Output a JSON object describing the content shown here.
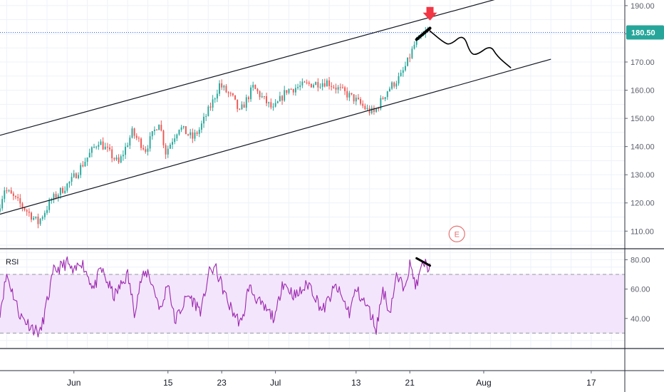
{
  "colors": {
    "up": "#26a69a",
    "down": "#ef5350",
    "channel": "#131722",
    "rsi_line": "#9c27b0",
    "rsi_band": "#f3e5fb",
    "rsi_band_border": "#9598a1",
    "price_line": "#2962ff",
    "price_label_bg": "#26a69a",
    "earnings": "#e57373",
    "arrow": "#f23645",
    "grid": "#eef1f8",
    "projection": "#000000"
  },
  "chart_data": [
    {
      "type": "candlestick",
      "title": "",
      "symbol": "",
      "y_axis": {
        "min": 104,
        "max": 192,
        "ticks": [
          110,
          120,
          130,
          140,
          150,
          160,
          170,
          180,
          190
        ],
        "tick_labels": [
          "110.00",
          "120.00",
          "130.00",
          "140.00",
          "150.00",
          "160.00",
          "170.00",
          "180.00",
          "190.00"
        ]
      },
      "x_axis": {
        "start": "2020-05-21",
        "end": "2020-08-22",
        "ticks": [
          {
            "date": "2020-06-01",
            "label": "Jun"
          },
          {
            "date": "2020-06-15",
            "label": "15"
          },
          {
            "date": "2020-06-23",
            "label": "23"
          },
          {
            "date": "2020-07-01",
            "label": "Jul"
          },
          {
            "date": "2020-07-13",
            "label": "13"
          },
          {
            "date": "2020-07-21",
            "label": "21"
          },
          {
            "date": "2020-08-01",
            "label": "Aug"
          },
          {
            "date": "2020-08-17",
            "label": "17"
          }
        ]
      },
      "last_price": 180.5,
      "last_price_label": "180.50",
      "earnings_marker": {
        "date": "2020-07-28",
        "price": 110,
        "label": "E"
      },
      "keypoints": [
        [
          "2020-05-21",
          117
        ],
        [
          "2020-05-22",
          125
        ],
        [
          "2020-05-25",
          118
        ],
        [
          "2020-05-27",
          113
        ],
        [
          "2020-05-29",
          121
        ],
        [
          "2020-06-01",
          128
        ],
        [
          "2020-06-03",
          135
        ],
        [
          "2020-06-05",
          142
        ],
        [
          "2020-06-08",
          134
        ],
        [
          "2020-06-10",
          145
        ],
        [
          "2020-06-12",
          139
        ],
        [
          "2020-06-14",
          149
        ],
        [
          "2020-06-15",
          138
        ],
        [
          "2020-06-17",
          147
        ],
        [
          "2020-06-19",
          143
        ],
        [
          "2020-06-20",
          146
        ],
        [
          "2020-06-22",
          156
        ],
        [
          "2020-06-23",
          162
        ],
        [
          "2020-06-25",
          157
        ],
        [
          "2020-06-26",
          152
        ],
        [
          "2020-06-28",
          161
        ],
        [
          "2020-07-01",
          153
        ],
        [
          "2020-07-03",
          160
        ],
        [
          "2020-07-06",
          162
        ],
        [
          "2020-07-09",
          163
        ],
        [
          "2020-07-11",
          160
        ],
        [
          "2020-07-13",
          157
        ],
        [
          "2020-07-15",
          153
        ],
        [
          "2020-07-16",
          152
        ],
        [
          "2020-07-18",
          160
        ],
        [
          "2020-07-20",
          165
        ],
        [
          "2020-07-21",
          170
        ],
        [
          "2020-07-22",
          176
        ],
        [
          "2020-07-24",
          181
        ]
      ],
      "channel": {
        "upper": [
          [
            "2020-05-21",
            144
          ],
          [
            "2020-08-07",
            195
          ]
        ],
        "lower": [
          [
            "2020-05-21",
            116
          ],
          [
            "2020-08-11",
            171
          ]
        ]
      },
      "divergence_line": [
        [
          "2020-07-22",
          178
        ],
        [
          "2020-07-24",
          182
        ]
      ],
      "top_arrow": {
        "date": "2020-07-24",
        "price": 187
      },
      "projection_path": [
        [
          "2020-07-24",
          181
        ],
        [
          "2020-07-26",
          177
        ],
        [
          "2020-07-27",
          176
        ],
        [
          "2020-07-29",
          180
        ],
        [
          "2020-07-30",
          173
        ],
        [
          "2020-07-31",
          172.5
        ],
        [
          "2020-08-02",
          176
        ],
        [
          "2020-08-03",
          172
        ],
        [
          "2020-08-05",
          168
        ]
      ]
    },
    {
      "type": "line",
      "title": "RSI",
      "y_axis": {
        "min": 20,
        "max": 87,
        "ticks": [
          40,
          60,
          80
        ],
        "tick_labels": [
          "40.00",
          "60.00",
          "80.00"
        ]
      },
      "band": [
        30,
        70
      ],
      "keypoints": [
        [
          "2020-05-21",
          45
        ],
        [
          "2020-05-22",
          70
        ],
        [
          "2020-05-24",
          42
        ],
        [
          "2020-05-26",
          33
        ],
        [
          "2020-05-27",
          30
        ],
        [
          "2020-05-29",
          72
        ],
        [
          "2020-05-31",
          78
        ],
        [
          "2020-06-01",
          70
        ],
        [
          "2020-06-02",
          80
        ],
        [
          "2020-06-04",
          60
        ],
        [
          "2020-06-05",
          74
        ],
        [
          "2020-06-07",
          55
        ],
        [
          "2020-06-09",
          70
        ],
        [
          "2020-06-10",
          45
        ],
        [
          "2020-06-11",
          66
        ],
        [
          "2020-06-12",
          72
        ],
        [
          "2020-06-14",
          45
        ],
        [
          "2020-06-15",
          66
        ],
        [
          "2020-06-16",
          38
        ],
        [
          "2020-06-18",
          56
        ],
        [
          "2020-06-20",
          45
        ],
        [
          "2020-06-21",
          70
        ],
        [
          "2020-06-22",
          75
        ],
        [
          "2020-06-24",
          50
        ],
        [
          "2020-06-25",
          42
        ],
        [
          "2020-06-26",
          36
        ],
        [
          "2020-06-27",
          62
        ],
        [
          "2020-06-29",
          48
        ],
        [
          "2020-07-01",
          40
        ],
        [
          "2020-07-02",
          65
        ],
        [
          "2020-07-04",
          55
        ],
        [
          "2020-07-06",
          64
        ],
        [
          "2020-07-08",
          45
        ],
        [
          "2020-07-10",
          62
        ],
        [
          "2020-07-12",
          44
        ],
        [
          "2020-07-13",
          60
        ],
        [
          "2020-07-15",
          45
        ],
        [
          "2020-07-16",
          33
        ],
        [
          "2020-07-17",
          60
        ],
        [
          "2020-07-18",
          44
        ],
        [
          "2020-07-19",
          68
        ],
        [
          "2020-07-20",
          62
        ],
        [
          "2020-07-21",
          76
        ],
        [
          "2020-07-22",
          62
        ],
        [
          "2020-07-23",
          78
        ],
        [
          "2020-07-24",
          74
        ]
      ],
      "divergence_line": [
        [
          "2020-07-22",
          81
        ],
        [
          "2020-07-24",
          76
        ]
      ]
    }
  ]
}
